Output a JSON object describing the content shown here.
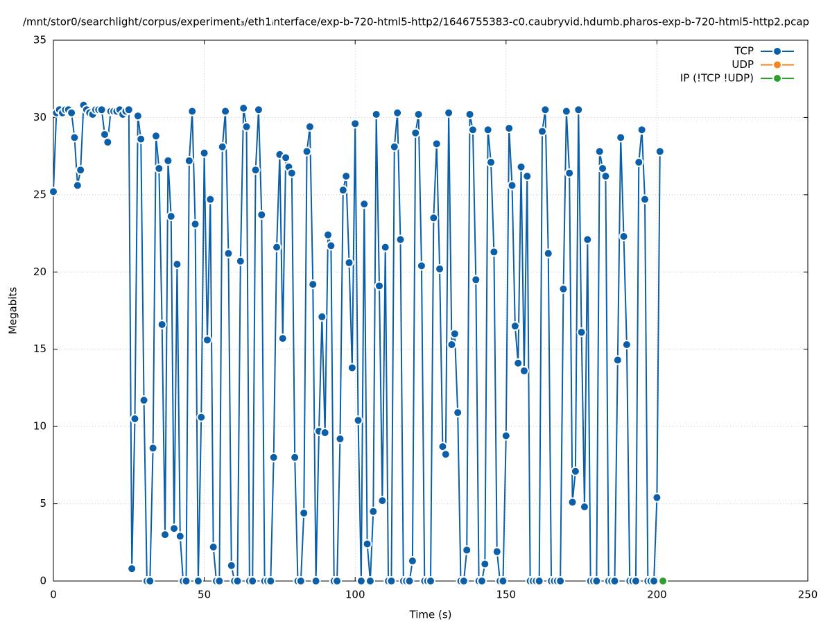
{
  "chart_data": {
    "type": "line",
    "title": "/mnt/stor0/searchlight/corpus/experiment₃/eth1ᵢnterface/exp-b-720-html5-http2/1646755383-c0.caubryvid.hdumb.pharos-exp-b-720-html5-http2.pcap",
    "x_label": "Time (s)",
    "y_label": "Megabits",
    "xlim": [
      0,
      250
    ],
    "xticks": [
      0,
      50,
      100,
      150,
      200,
      250
    ],
    "ylim": [
      0,
      35
    ],
    "yticks": [
      0,
      5,
      10,
      15,
      20,
      25,
      30,
      35
    ],
    "grid": true,
    "legend": "upper right",
    "series": [
      {
        "name": "TCP",
        "color": "#0a5fa8",
        "x": [
          0,
          1,
          2,
          3,
          4,
          5,
          6,
          7,
          8,
          9,
          10,
          11,
          12,
          13,
          14,
          15,
          16,
          17,
          18,
          19,
          20,
          21,
          22,
          23,
          24,
          25,
          26,
          27,
          28,
          29,
          30,
          31,
          32,
          33,
          34,
          35,
          36,
          37,
          38,
          39,
          40,
          41,
          42,
          43,
          44,
          45,
          46,
          47,
          48,
          49,
          50,
          51,
          52,
          53,
          54,
          55,
          56,
          57,
          58,
          59,
          60,
          61,
          62,
          63,
          64,
          65,
          66,
          67,
          68,
          69,
          70,
          71,
          72,
          73,
          74,
          75,
          76,
          77,
          78,
          79,
          80,
          81,
          82,
          83,
          84,
          85,
          86,
          87,
          88,
          89,
          90,
          91,
          92,
          93,
          94,
          95,
          96,
          97,
          98,
          99,
          100,
          101,
          102,
          103,
          104,
          105,
          106,
          107,
          108,
          109,
          110,
          111,
          112,
          113,
          114,
          115,
          116,
          117,
          118,
          119,
          120,
          121,
          122,
          123,
          124,
          125,
          126,
          127,
          128,
          129,
          130,
          131,
          132,
          133,
          134,
          135,
          136,
          137,
          138,
          139,
          140,
          141,
          142,
          143,
          144,
          145,
          146,
          147,
          148,
          149,
          150,
          151,
          152,
          153,
          154,
          155,
          156,
          157,
          158,
          159,
          160,
          161,
          162,
          163,
          164,
          165,
          166,
          167,
          168,
          169,
          170,
          171,
          172,
          173,
          174,
          175,
          176,
          177,
          178,
          179,
          180,
          181,
          182,
          183,
          184,
          185,
          186,
          187,
          188,
          189,
          190,
          191,
          192,
          193,
          194,
          195,
          196,
          197,
          198,
          199,
          200,
          201
        ],
        "values": [
          25.2,
          30.3,
          30.5,
          30.3,
          30.5,
          30.5,
          30.3,
          28.7,
          25.6,
          26.6,
          30.8,
          30.5,
          30.3,
          30.2,
          30.5,
          30.5,
          30.5,
          28.9,
          28.4,
          30.4,
          30.4,
          30.4,
          30.5,
          30.2,
          30.4,
          30.5,
          0.8,
          10.5,
          30.1,
          28.6,
          11.7,
          0,
          0,
          8.6,
          28.8,
          26.7,
          16.6,
          3.0,
          27.2,
          23.6,
          3.4,
          20.5,
          2.9,
          0,
          0,
          27.2,
          30.4,
          23.1,
          0,
          10.6,
          27.7,
          15.6,
          24.7,
          2.2,
          0,
          0,
          28.1,
          30.4,
          21.2,
          1.0,
          0,
          0,
          20.7,
          30.6,
          29.4,
          0,
          0,
          26.6,
          30.5,
          23.7,
          0,
          0,
          0,
          8.0,
          21.6,
          27.6,
          15.7,
          27.4,
          26.8,
          26.4,
          8.0,
          0,
          0,
          4.4,
          27.8,
          29.4,
          19.2,
          0,
          9.7,
          17.1,
          9.6,
          22.4,
          21.7,
          0,
          0,
          9.2,
          25.3,
          26.2,
          20.6,
          13.8,
          29.6,
          10.4,
          0,
          24.4,
          2.4,
          0,
          4.5,
          30.2,
          19.1,
          5.2,
          21.6,
          0,
          0,
          28.1,
          30.3,
          22.1,
          0,
          0,
          0,
          1.3,
          29.0,
          30.2,
          20.4,
          0,
          0,
          0,
          23.5,
          28.3,
          20.2,
          8.7,
          8.2,
          30.3,
          15.3,
          16.0,
          10.9,
          0,
          0,
          2.0,
          30.2,
          29.2,
          19.5,
          0,
          0,
          1.1,
          29.2,
          27.1,
          21.3,
          1.9,
          0,
          0,
          9.4,
          29.3,
          25.6,
          16.5,
          14.1,
          26.8,
          13.6,
          26.2,
          0,
          0,
          0,
          0,
          29.1,
          30.5,
          21.2,
          0,
          0,
          0,
          0,
          18.9,
          30.4,
          26.4,
          5.1,
          7.1,
          30.5,
          16.1,
          4.8,
          22.1,
          0,
          0,
          0,
          27.8,
          26.7,
          26.2,
          0,
          0,
          0,
          14.3,
          28.7,
          22.3,
          15.3,
          0,
          0,
          0,
          27.1,
          29.2,
          24.7,
          0,
          0,
          0,
          5.4,
          27.8
        ]
      },
      {
        "name": "UDP",
        "color": "#f28522",
        "x": [],
        "values": []
      },
      {
        "name": "IP (!TCP  !UDP)",
        "color": "#2ca02c",
        "x": [
          202
        ],
        "values": [
          0
        ]
      }
    ]
  }
}
